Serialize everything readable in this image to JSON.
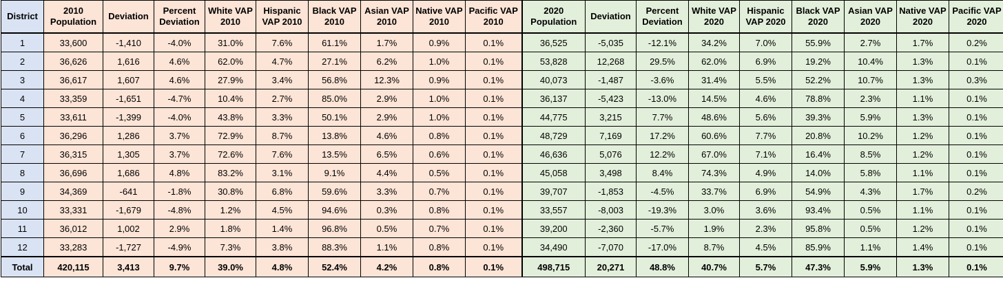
{
  "colors": {
    "district_col": "#dae3f3",
    "group_2010": "#fce4d6",
    "group_2020": "#e2efda"
  },
  "headers": [
    "District",
    "2010 Population",
    "Deviation",
    "Percent Deviation",
    "White VAP 2010",
    "Hispanic VAP 2010",
    "Black VAP 2010",
    "Asian VAP 2010",
    "Native VAP 2010",
    "Pacific VAP 2010",
    "2020 Population",
    "Deviation",
    "Percent Deviation",
    "White VAP 2020",
    "Hispanic VAP 2020",
    "Black VAP 2020",
    "Asian VAP 2020",
    "Native VAP 2020",
    "Pacific VAP 2020"
  ],
  "rows": [
    [
      "1",
      "33,600",
      "-1,410",
      "-4.0%",
      "31.0%",
      "7.6%",
      "61.1%",
      "1.7%",
      "0.9%",
      "0.1%",
      "36,525",
      "-5,035",
      "-12.1%",
      "34.2%",
      "7.0%",
      "55.9%",
      "2.7%",
      "1.7%",
      "0.2%"
    ],
    [
      "2",
      "36,626",
      "1,616",
      "4.6%",
      "62.0%",
      "4.7%",
      "27.1%",
      "6.2%",
      "1.0%",
      "0.1%",
      "53,828",
      "12,268",
      "29.5%",
      "62.0%",
      "6.9%",
      "19.2%",
      "10.4%",
      "1.3%",
      "0.1%"
    ],
    [
      "3",
      "36,617",
      "1,607",
      "4.6%",
      "27.9%",
      "3.4%",
      "56.8%",
      "12.3%",
      "0.9%",
      "0.1%",
      "40,073",
      "-1,487",
      "-3.6%",
      "31.4%",
      "5.5%",
      "52.2%",
      "10.7%",
      "1.3%",
      "0.3%"
    ],
    [
      "4",
      "33,359",
      "-1,651",
      "-4.7%",
      "10.4%",
      "2.7%",
      "85.0%",
      "2.9%",
      "1.0%",
      "0.1%",
      "36,137",
      "-5,423",
      "-13.0%",
      "14.5%",
      "4.6%",
      "78.8%",
      "2.3%",
      "1.1%",
      "0.1%"
    ],
    [
      "5",
      "33,611",
      "-1,399",
      "-4.0%",
      "43.8%",
      "3.3%",
      "50.1%",
      "2.9%",
      "1.0%",
      "0.1%",
      "44,775",
      "3,215",
      "7.7%",
      "48.6%",
      "5.6%",
      "39.3%",
      "5.9%",
      "1.3%",
      "0.1%"
    ],
    [
      "6",
      "36,296",
      "1,286",
      "3.7%",
      "72.9%",
      "8.7%",
      "13.8%",
      "4.6%",
      "0.8%",
      "0.1%",
      "48,729",
      "7,169",
      "17.2%",
      "60.6%",
      "7.7%",
      "20.8%",
      "10.2%",
      "1.2%",
      "0.1%"
    ],
    [
      "7",
      "36,315",
      "1,305",
      "3.7%",
      "72.6%",
      "7.6%",
      "13.5%",
      "6.5%",
      "0.6%",
      "0.1%",
      "46,636",
      "5,076",
      "12.2%",
      "67.0%",
      "7.1%",
      "16.4%",
      "8.5%",
      "1.2%",
      "0.1%"
    ],
    [
      "8",
      "36,696",
      "1,686",
      "4.8%",
      "83.2%",
      "3.1%",
      "9.1%",
      "4.4%",
      "0.5%",
      "0.1%",
      "45,058",
      "3,498",
      "8.4%",
      "74.3%",
      "4.9%",
      "14.0%",
      "5.8%",
      "1.1%",
      "0.1%"
    ],
    [
      "9",
      "34,369",
      "-641",
      "-1.8%",
      "30.8%",
      "6.8%",
      "59.6%",
      "3.3%",
      "0.7%",
      "0.1%",
      "39,707",
      "-1,853",
      "-4.5%",
      "33.7%",
      "6.9%",
      "54.9%",
      "4.3%",
      "1.7%",
      "0.2%"
    ],
    [
      "10",
      "33,331",
      "-1,679",
      "-4.8%",
      "1.2%",
      "4.5%",
      "94.6%",
      "0.3%",
      "0.8%",
      "0.1%",
      "33,557",
      "-8,003",
      "-19.3%",
      "3.0%",
      "3.6%",
      "93.4%",
      "0.5%",
      "1.1%",
      "0.1%"
    ],
    [
      "11",
      "36,012",
      "1,002",
      "2.9%",
      "1.8%",
      "1.4%",
      "96.8%",
      "0.5%",
      "0.7%",
      "0.1%",
      "39,200",
      "-2,360",
      "-5.7%",
      "1.9%",
      "2.3%",
      "95.8%",
      "0.5%",
      "1.2%",
      "0.1%"
    ],
    [
      "12",
      "33,283",
      "-1,727",
      "-4.9%",
      "7.3%",
      "3.8%",
      "88.3%",
      "1.1%",
      "0.8%",
      "0.1%",
      "34,490",
      "-7,070",
      "-17.0%",
      "8.7%",
      "4.5%",
      "85.9%",
      "1.1%",
      "1.4%",
      "0.1%"
    ]
  ],
  "total": [
    "Total",
    "420,115",
    "3,413",
    "9.7%",
    "39.0%",
    "4.8%",
    "52.4%",
    "4.2%",
    "0.8%",
    "0.1%",
    "498,715",
    "20,271",
    "48.8%",
    "40.7%",
    "5.7%",
    "47.3%",
    "5.9%",
    "1.3%",
    "0.1%"
  ]
}
